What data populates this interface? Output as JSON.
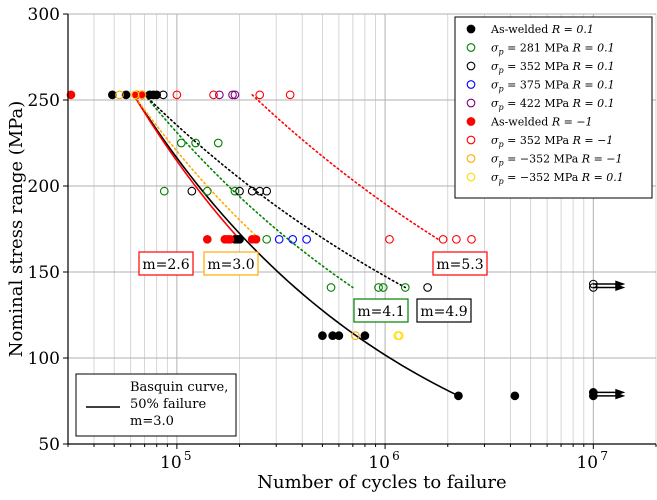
{
  "chart_data": {
    "type": "scatter",
    "xlabel": "Number of cycles to failure",
    "ylabel": "Nominal stress range (MPa)",
    "xscale": "log",
    "xlim": [
      30000,
      20000000
    ],
    "ylim": [
      50,
      300
    ],
    "grid": true,
    "x_ticks": [
      {
        "value": 100000,
        "base": "10",
        "exp": "5"
      },
      {
        "value": 1000000,
        "base": "10",
        "exp": "6"
      },
      {
        "value": 10000000,
        "base": "10",
        "exp": "7"
      }
    ],
    "y_ticks": [
      50,
      100,
      150,
      200,
      250,
      300
    ],
    "legend_position": "top-right",
    "series": [
      {
        "name": "As-welded",
        "r": "R = 0.1",
        "sigma": "",
        "color": "#000000",
        "filled": true,
        "points": [
          [
            49000,
            253
          ],
          [
            57000,
            253
          ],
          [
            74000,
            253
          ],
          [
            77000,
            253
          ],
          [
            80000,
            253
          ],
          [
            190000,
            169
          ],
          [
            195000,
            169
          ],
          [
            200000,
            169
          ],
          [
            500000,
            113
          ],
          [
            560000,
            113
          ],
          [
            600000,
            113
          ],
          [
            800000,
            113
          ],
          [
            2250000,
            78
          ],
          [
            4200000,
            78
          ],
          [
            10000000,
            78
          ],
          [
            10000000,
            80
          ]
        ]
      },
      {
        "name": "",
        "r": "R = 0.1",
        "sigma": "281 MPa",
        "color": "#008000",
        "filled": false,
        "points": [
          [
            87000,
            197
          ],
          [
            105000,
            225
          ],
          [
            123000,
            225
          ],
          [
            140000,
            197
          ],
          [
            158000,
            225
          ],
          [
            190000,
            197
          ],
          [
            270000,
            169
          ],
          [
            550000,
            141
          ],
          [
            930000,
            141
          ],
          [
            980000,
            141
          ],
          [
            1250000,
            141
          ]
        ]
      },
      {
        "name": "",
        "r": "R = 0.1",
        "sigma": "352 MPa",
        "color": "#000000",
        "filled": false,
        "points": [
          [
            86000,
            253
          ],
          [
            118000,
            197
          ],
          [
            200000,
            197
          ],
          [
            230000,
            197
          ],
          [
            250000,
            197
          ],
          [
            270000,
            197
          ],
          [
            1600000,
            141
          ],
          [
            10000000,
            141
          ],
          [
            10000000,
            143
          ]
        ]
      },
      {
        "name": "",
        "r": "R = 0.1",
        "sigma": "375 MPa",
        "color": "#0000ff",
        "filled": false,
        "points": [
          [
            310000,
            169
          ],
          [
            360000,
            169
          ],
          [
            420000,
            169
          ]
        ]
      },
      {
        "name": "",
        "r": "R = 0.1",
        "sigma": "422 MPa",
        "color": "#800080",
        "filled": false,
        "points": [
          [
            160000,
            253
          ],
          [
            185000,
            253
          ],
          [
            190000,
            253
          ]
        ]
      },
      {
        "name": "As-welded",
        "r": "R = −1",
        "sigma": "",
        "color": "#ff0000",
        "filled": true,
        "points": [
          [
            31000,
            253
          ],
          [
            64000,
            253
          ],
          [
            68000,
            253
          ],
          [
            140000,
            169
          ],
          [
            170000,
            169
          ],
          [
            175000,
            169
          ],
          [
            180000,
            169
          ],
          [
            230000,
            169
          ],
          [
            240000,
            169
          ]
        ]
      },
      {
        "name": "",
        "r": "R = −1",
        "sigma": "352 MPa",
        "color": "#ff0000",
        "filled": false,
        "points": [
          [
            100000,
            253
          ],
          [
            150000,
            253
          ],
          [
            250000,
            253
          ],
          [
            350000,
            253
          ],
          [
            1050000,
            169
          ],
          [
            1900000,
            169
          ],
          [
            2200000,
            169
          ],
          [
            2600000,
            169
          ]
        ]
      },
      {
        "name": "",
        "r": "R = −1",
        "sigma": "−352 MPa",
        "color": "#ffaa00",
        "filled": false,
        "points": [
          [
            53000,
            253
          ],
          [
            68000,
            253
          ],
          [
            720000,
            113
          ]
        ]
      },
      {
        "name": "",
        "r": "R = 0.1",
        "sigma": "−352 MPa",
        "color": "#ffdd00",
        "filled": false,
        "points": [
          [
            63000,
            253
          ],
          [
            1150000,
            113
          ],
          [
            1170000,
            113
          ]
        ]
      }
    ],
    "curves": [
      {
        "id": "aw-r01",
        "style": "solid",
        "color": "#000000",
        "x_start": 62000,
        "x_end": 2250000,
        "y_start": 253,
        "y_end": 78
      },
      {
        "id": "aw-rm1",
        "style": "solid",
        "color": "#ff0000",
        "x_start": 62000,
        "x_end": 200000,
        "y_start": 253,
        "y_end": 169
      },
      {
        "id": "neg352-rm1",
        "style": "dotted",
        "color": "#ffaa00",
        "x_start": 62000,
        "x_end": 250000,
        "y_start": 253,
        "y_end": 169
      },
      {
        "id": "p281",
        "style": "dotted",
        "color": "#008000",
        "x_start": 70000,
        "x_end": 700000,
        "y_start": 253,
        "y_end": 141
      },
      {
        "id": "p352",
        "style": "dotted",
        "color": "#000000",
        "x_start": 70000,
        "x_end": 1250000,
        "y_start": 253,
        "y_end": 141
      },
      {
        "id": "p352-rm1",
        "style": "dotted",
        "color": "#ff0000",
        "x_start": 230000,
        "x_end": 1800000,
        "y_start": 253,
        "y_end": 169
      }
    ],
    "annotations": [
      {
        "text": "m=2.6",
        "color": "#ff0000"
      },
      {
        "text": "m=3.0",
        "color": "#ffaa00"
      },
      {
        "text": "m=4.1",
        "color": "#008000"
      },
      {
        "text": "m=4.9",
        "color": "#000000"
      },
      {
        "text": "m=5.3",
        "color": "#ff0000"
      }
    ],
    "runouts": [
      {
        "x": 10000000,
        "y": 141
      },
      {
        "x": 10000000,
        "y": 143
      },
      {
        "x": 10000000,
        "y": 78
      },
      {
        "x": 10000000,
        "y": 80
      }
    ],
    "inner_legend": {
      "lines": [
        "Basquin curve,",
        "50% failure",
        "m=3.0"
      ]
    }
  }
}
